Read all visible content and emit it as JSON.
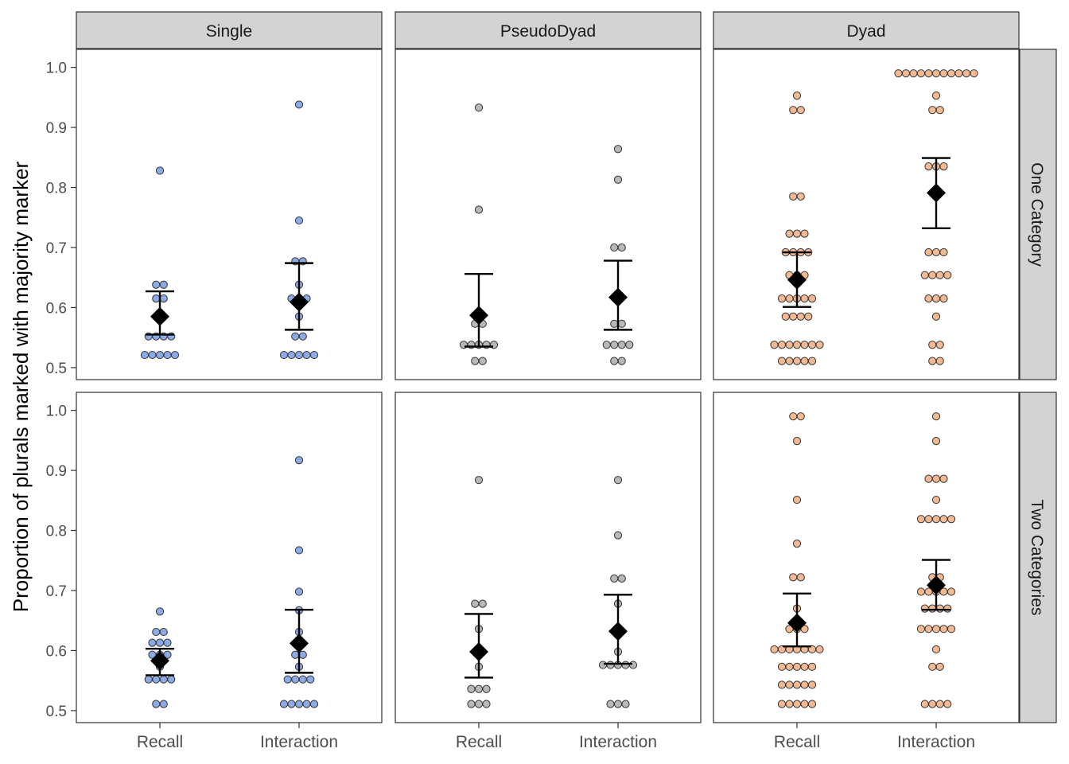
{
  "chart_data": {
    "type": "scatter",
    "layout": "faceted grid, 2 rows x 3 columns, dot plot with mean and error bars",
    "ylabel": "Proportion of plurals marked with majority marker",
    "xlabel": "",
    "categories": [
      "Recall",
      "Interaction"
    ],
    "columns": [
      "Single",
      "PseudoDyad",
      "Dyad"
    ],
    "rows": [
      "One Category",
      "Two Categories"
    ],
    "ylim": [
      0.48,
      1.03
    ],
    "yticks": [
      "0.5",
      "0.6",
      "0.7",
      "0.8",
      "0.9",
      "1.0"
    ],
    "ytick_values": [
      0.5,
      0.6,
      0.7,
      0.8,
      0.9,
      1.0
    ],
    "grid": false,
    "colors": {
      "Single": "#6f95e0",
      "PseudoDyad": "#a6a6a6",
      "Dyad": "#f0a877",
      "mean": "#000000",
      "strip": "#d3d3d3"
    },
    "panels": [
      {
        "row": "One Category",
        "column": "Single",
        "series": [
          {
            "category": "Recall",
            "values": [
              0.828,
              0.638,
              0.638,
              0.615,
              0.615,
              0.585,
              0.552,
              0.552,
              0.552,
              0.552,
              0.521,
              0.521,
              0.521,
              0.521,
              0.521
            ],
            "mean": 0.585,
            "ci": [
              0.555,
              0.627
            ]
          },
          {
            "category": "Interaction",
            "values": [
              0.938,
              0.745,
              0.677,
              0.677,
              0.638,
              0.615,
              0.615,
              0.615,
              0.585,
              0.552,
              0.552,
              0.521,
              0.521,
              0.521,
              0.521,
              0.521
            ],
            "mean": 0.609,
            "ci": [
              0.563,
              0.674
            ]
          }
        ]
      },
      {
        "row": "One Category",
        "column": "PseudoDyad",
        "series": [
          {
            "category": "Recall",
            "values": [
              0.933,
              0.763,
              0.573,
              0.573,
              0.538,
              0.538,
              0.538,
              0.538,
              0.538,
              0.511,
              0.511
            ],
            "mean": 0.587,
            "ci": [
              0.535,
              0.656
            ]
          },
          {
            "category": "Interaction",
            "values": [
              0.864,
              0.813,
              0.7,
              0.7,
              0.573,
              0.573,
              0.538,
              0.538,
              0.538,
              0.538,
              0.511,
              0.511
            ],
            "mean": 0.617,
            "ci": [
              0.563,
              0.678
            ]
          }
        ]
      },
      {
        "row": "One Category",
        "column": "Dyad",
        "series": [
          {
            "category": "Recall",
            "values": [
              0.953,
              0.929,
              0.929,
              0.785,
              0.785,
              0.723,
              0.723,
              0.723,
              0.692,
              0.692,
              0.692,
              0.692,
              0.654,
              0.654,
              0.654,
              0.615,
              0.615,
              0.615,
              0.615,
              0.615,
              0.585,
              0.585,
              0.585,
              0.585,
              0.538,
              0.538,
              0.538,
              0.538,
              0.538,
              0.538,
              0.538,
              0.511,
              0.511,
              0.511,
              0.511,
              0.511
            ],
            "mean": 0.646,
            "ci": [
              0.601,
              0.692
            ]
          },
          {
            "category": "Interaction",
            "values": [
              0.99,
              0.99,
              0.99,
              0.99,
              0.99,
              0.99,
              0.99,
              0.99,
              0.99,
              0.99,
              0.99,
              0.953,
              0.929,
              0.929,
              0.835,
              0.835,
              0.835,
              0.692,
              0.692,
              0.692,
              0.654,
              0.654,
              0.654,
              0.654,
              0.615,
              0.615,
              0.615,
              0.585,
              0.538,
              0.538,
              0.511,
              0.511
            ],
            "mean": 0.791,
            "ci": [
              0.732,
              0.849
            ]
          }
        ]
      },
      {
        "row": "Two Categories",
        "column": "Single",
        "series": [
          {
            "category": "Recall",
            "values": [
              0.665,
              0.631,
              0.631,
              0.613,
              0.613,
              0.613,
              0.593,
              0.593,
              0.593,
              0.583,
              0.573,
              0.552,
              0.552,
              0.552,
              0.552,
              0.511,
              0.511
            ],
            "mean": 0.583,
            "ci": [
              0.559,
              0.603
            ]
          },
          {
            "category": "Interaction",
            "values": [
              0.917,
              0.767,
              0.698,
              0.667,
              0.631,
              0.613,
              0.593,
              0.593,
              0.573,
              0.552,
              0.552,
              0.552,
              0.552,
              0.511,
              0.511,
              0.511,
              0.511,
              0.511
            ],
            "mean": 0.612,
            "ci": [
              0.563,
              0.668
            ]
          }
        ]
      },
      {
        "row": "Two Categories",
        "column": "PseudoDyad",
        "series": [
          {
            "category": "Recall",
            "values": [
              0.884,
              0.678,
              0.678,
              0.636,
              0.598,
              0.573,
              0.536,
              0.536,
              0.536,
              0.511,
              0.511,
              0.511
            ],
            "mean": 0.598,
            "ci": [
              0.555,
              0.661
            ]
          },
          {
            "category": "Interaction",
            "values": [
              0.884,
              0.792,
              0.72,
              0.72,
              0.678,
              0.636,
              0.598,
              0.576,
              0.576,
              0.576,
              0.576,
              0.576,
              0.511,
              0.511,
              0.511
            ],
            "mean": 0.632,
            "ci": [
              0.578,
              0.693
            ]
          }
        ]
      },
      {
        "row": "Two Categories",
        "column": "Dyad",
        "series": [
          {
            "category": "Recall",
            "values": [
              0.99,
              0.99,
              0.949,
              0.851,
              0.778,
              0.722,
              0.722,
              0.67,
              0.636,
              0.636,
              0.636,
              0.602,
              0.602,
              0.602,
              0.602,
              0.602,
              0.602,
              0.602,
              0.573,
              0.573,
              0.573,
              0.573,
              0.573,
              0.543,
              0.543,
              0.543,
              0.543,
              0.543,
              0.511,
              0.511,
              0.511,
              0.511,
              0.511
            ],
            "mean": 0.646,
            "ci": [
              0.607,
              0.695
            ]
          },
          {
            "category": "Interaction",
            "values": [
              0.99,
              0.949,
              0.886,
              0.886,
              0.886,
              0.851,
              0.819,
              0.819,
              0.819,
              0.819,
              0.819,
              0.722,
              0.722,
              0.698,
              0.698,
              0.698,
              0.698,
              0.698,
              0.67,
              0.67,
              0.67,
              0.67,
              0.636,
              0.636,
              0.636,
              0.636,
              0.636,
              0.602,
              0.573,
              0.573,
              0.511,
              0.511,
              0.511,
              0.511
            ],
            "mean": 0.709,
            "ci": [
              0.668,
              0.751
            ]
          }
        ]
      }
    ]
  }
}
